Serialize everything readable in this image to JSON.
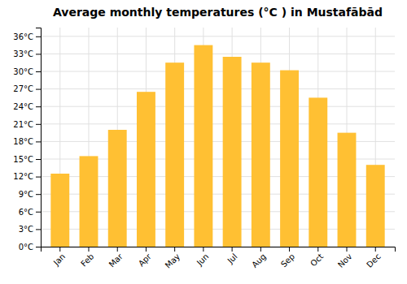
{
  "chart_data": {
    "type": "bar",
    "title": "Average monthly temperatures (°C ) in Mustafābād",
    "categories": [
      "Jan",
      "Feb",
      "Mar",
      "Apr",
      "May",
      "Jun",
      "Jul",
      "Aug",
      "Sep",
      "Oct",
      "Nov",
      "Dec"
    ],
    "values": [
      12.5,
      15.5,
      20.0,
      26.5,
      31.5,
      34.5,
      32.5,
      31.5,
      30.2,
      25.5,
      19.5,
      14.0
    ],
    "color": "#FFC033",
    "ylim": [
      0,
      37.5
    ],
    "yticks": [
      {
        "value": 0,
        "label": "0°C"
      },
      {
        "value": 3,
        "label": "3°C"
      },
      {
        "value": 6,
        "label": "6°C"
      },
      {
        "value": 9,
        "label": "9°C"
      },
      {
        "value": 12,
        "label": "12°C"
      },
      {
        "value": 15,
        "label": "15°C"
      },
      {
        "value": 18,
        "label": "18°C"
      },
      {
        "value": 21,
        "label": "21°C"
      },
      {
        "value": 24,
        "label": "24°C"
      },
      {
        "value": 27,
        "label": "27°C"
      },
      {
        "value": 30,
        "label": "30°C"
      },
      {
        "value": 33,
        "label": "33°C"
      },
      {
        "value": 36,
        "label": "36°C"
      }
    ],
    "grid": true
  }
}
